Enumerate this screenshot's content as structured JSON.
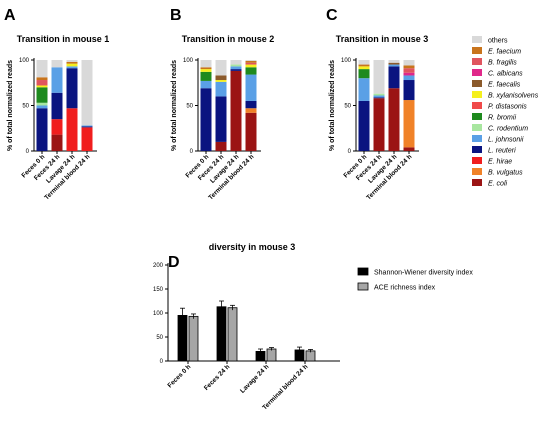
{
  "panels": {
    "A": "A",
    "B": "B",
    "C": "C",
    "D": "D"
  },
  "legend": {
    "entries": [
      {
        "label": "others",
        "color": "#d9d9d9",
        "italic": false
      },
      {
        "label": "E. faecium",
        "color": "#c8741c",
        "italic": true
      },
      {
        "label": "B. fragilis",
        "color": "#e0555f",
        "italic": true
      },
      {
        "label": "C. albicans",
        "color": "#e0288a",
        "italic": true
      },
      {
        "label": "E. faecalis",
        "color": "#8b5a2b",
        "italic": true
      },
      {
        "label": "B. xylanisolvens",
        "color": "#f5f01e",
        "italic": true
      },
      {
        "label": "P. distasonis",
        "color": "#f04a4a",
        "italic": true
      },
      {
        "label": "R. bromii",
        "color": "#1e8a1e",
        "italic": true
      },
      {
        "label": "C. rodentium",
        "color": "#a8e6a0",
        "italic": true
      },
      {
        "label": "L. johnsonii",
        "color": "#5aa0e6",
        "italic": true
      },
      {
        "label": "L. reuteri",
        "color": "#0a1480",
        "italic": true
      },
      {
        "label": "E. hirae",
        "color": "#f01e1e",
        "italic": true
      },
      {
        "label": "B. vulgatus",
        "color": "#f08228",
        "italic": true
      },
      {
        "label": "E. coli",
        "color": "#9b1414",
        "italic": true
      }
    ]
  },
  "chart_data": [
    {
      "type": "bar",
      "stacked": true,
      "panel": "A",
      "title": "Transition in mouse 1",
      "ylabel": "% of total normalized reads",
      "ylim": [
        0,
        100
      ],
      "yticks": [
        0,
        50,
        100
      ],
      "categories": [
        "Feces 0 h",
        "Feces 24 h",
        "Lavage 24 h",
        "Terminal blood 24 h"
      ],
      "series": [
        {
          "name": "E. coli",
          "values": [
            0,
            18,
            0,
            0
          ]
        },
        {
          "name": "B. vulgatus",
          "values": [
            0,
            0,
            0,
            0
          ]
        },
        {
          "name": "E. hirae",
          "values": [
            0,
            17,
            47,
            26
          ]
        },
        {
          "name": "L. reuteri",
          "values": [
            47,
            29,
            44,
            1
          ]
        },
        {
          "name": "L. johnsonii",
          "values": [
            3,
            28,
            2,
            1
          ]
        },
        {
          "name": "C. rodentium",
          "values": [
            3,
            0,
            0,
            0
          ]
        },
        {
          "name": "R. bromii",
          "values": [
            17,
            0,
            0,
            0
          ]
        },
        {
          "name": "P. distasonis",
          "values": [
            0,
            0,
            0,
            0
          ]
        },
        {
          "name": "B. xylanisolvens",
          "values": [
            2,
            0,
            3,
            0
          ]
        },
        {
          "name": "E. faecalis",
          "values": [
            0,
            0,
            0,
            0
          ]
        },
        {
          "name": "C. albicans",
          "values": [
            0,
            0,
            0,
            0
          ]
        },
        {
          "name": "B. fragilis",
          "values": [
            6,
            0,
            0,
            0
          ]
        },
        {
          "name": "E. faecium",
          "values": [
            3,
            0,
            2,
            0
          ]
        },
        {
          "name": "others",
          "values": [
            19,
            8,
            2,
            72
          ]
        }
      ]
    },
    {
      "type": "bar",
      "stacked": true,
      "panel": "B",
      "title": "Transition in mouse 2",
      "ylabel": "% of total normalized reads",
      "ylim": [
        0,
        100
      ],
      "yticks": [
        0,
        50,
        100
      ],
      "categories": [
        "Feces 0 h",
        "Feces 24 h",
        "Lavage 24 h",
        "Terminal blood 24 h"
      ],
      "series": [
        {
          "name": "E. coli",
          "values": [
            0,
            10,
            88,
            42
          ]
        },
        {
          "name": "B. vulgatus",
          "values": [
            0,
            0,
            0,
            5
          ]
        },
        {
          "name": "E. hirae",
          "values": [
            0,
            0,
            0,
            0
          ]
        },
        {
          "name": "L. reuteri",
          "values": [
            69,
            50,
            2,
            8
          ]
        },
        {
          "name": "L. johnsonii",
          "values": [
            8,
            16,
            3,
            29
          ]
        },
        {
          "name": "C. rodentium",
          "values": [
            0,
            0,
            2,
            0
          ]
        },
        {
          "name": "R. bromii",
          "values": [
            10,
            0,
            0,
            8
          ]
        },
        {
          "name": "P. distasonis",
          "values": [
            0,
            0,
            0,
            0
          ]
        },
        {
          "name": "B. xylanisolvens",
          "values": [
            3,
            2,
            0,
            3
          ]
        },
        {
          "name": "E. faecalis",
          "values": [
            0,
            5,
            0,
            0
          ]
        },
        {
          "name": "C. albicans",
          "values": [
            0,
            0,
            0,
            0
          ]
        },
        {
          "name": "B. fragilis",
          "values": [
            0,
            0,
            0,
            2
          ]
        },
        {
          "name": "E. faecium",
          "values": [
            2,
            0,
            0,
            2
          ]
        },
        {
          "name": "others",
          "values": [
            8,
            17,
            5,
            1
          ]
        }
      ]
    },
    {
      "type": "bar",
      "stacked": true,
      "panel": "C",
      "title": "Transition in mouse 3",
      "ylabel": "% of total normalized reads",
      "ylim": [
        0,
        100
      ],
      "yticks": [
        0,
        50,
        100
      ],
      "categories": [
        "Feces 0 h",
        "Feces 24 h",
        "Lavage 24 h",
        "Terminal blood 24 h"
      ],
      "series": [
        {
          "name": "E. coli",
          "values": [
            0,
            58,
            69,
            4
          ]
        },
        {
          "name": "B. vulgatus",
          "values": [
            0,
            0,
            0,
            52
          ]
        },
        {
          "name": "E. hirae",
          "values": [
            0,
            0,
            0,
            0
          ]
        },
        {
          "name": "L. reuteri",
          "values": [
            55,
            1,
            24,
            22
          ]
        },
        {
          "name": "L. johnsonii",
          "values": [
            25,
            2,
            2,
            5
          ]
        },
        {
          "name": "C. rodentium",
          "values": [
            0,
            2,
            0,
            0
          ]
        },
        {
          "name": "R. bromii",
          "values": [
            10,
            0,
            0,
            0
          ]
        },
        {
          "name": "P. distasonis",
          "values": [
            0,
            0,
            0,
            0
          ]
        },
        {
          "name": "B. xylanisolvens",
          "values": [
            3,
            0,
            0,
            0
          ]
        },
        {
          "name": "E. faecalis",
          "values": [
            0,
            0,
            2,
            0
          ]
        },
        {
          "name": "C. albicans",
          "values": [
            0,
            0,
            0,
            3
          ]
        },
        {
          "name": "B. fragilis",
          "values": [
            0,
            0,
            0,
            5
          ]
        },
        {
          "name": "E. faecium",
          "values": [
            2,
            0,
            0,
            3
          ]
        },
        {
          "name": "others",
          "values": [
            5,
            37,
            3,
            6
          ]
        }
      ]
    },
    {
      "type": "bar",
      "panel": "D",
      "title": "diversity in mouse 3",
      "ylim": [
        0,
        200
      ],
      "yticks": [
        0,
        50,
        100,
        150,
        200
      ],
      "categories": [
        "Feces 0 h",
        "Feces 24 h",
        "Lavage 24 h",
        "Terminal blood 24 h"
      ],
      "series": [
        {
          "name": "Shannon-Wiener diversity index",
          "color": "#000000",
          "values": [
            95,
            113,
            20,
            23
          ],
          "errors": [
            15,
            12,
            5,
            6
          ]
        },
        {
          "name": "ACE richness index",
          "color": "#a6a6a6",
          "values": [
            93,
            111,
            25,
            21
          ],
          "errors": [
            5,
            5,
            3,
            3
          ]
        }
      ],
      "legend_position": "top-right"
    }
  ]
}
